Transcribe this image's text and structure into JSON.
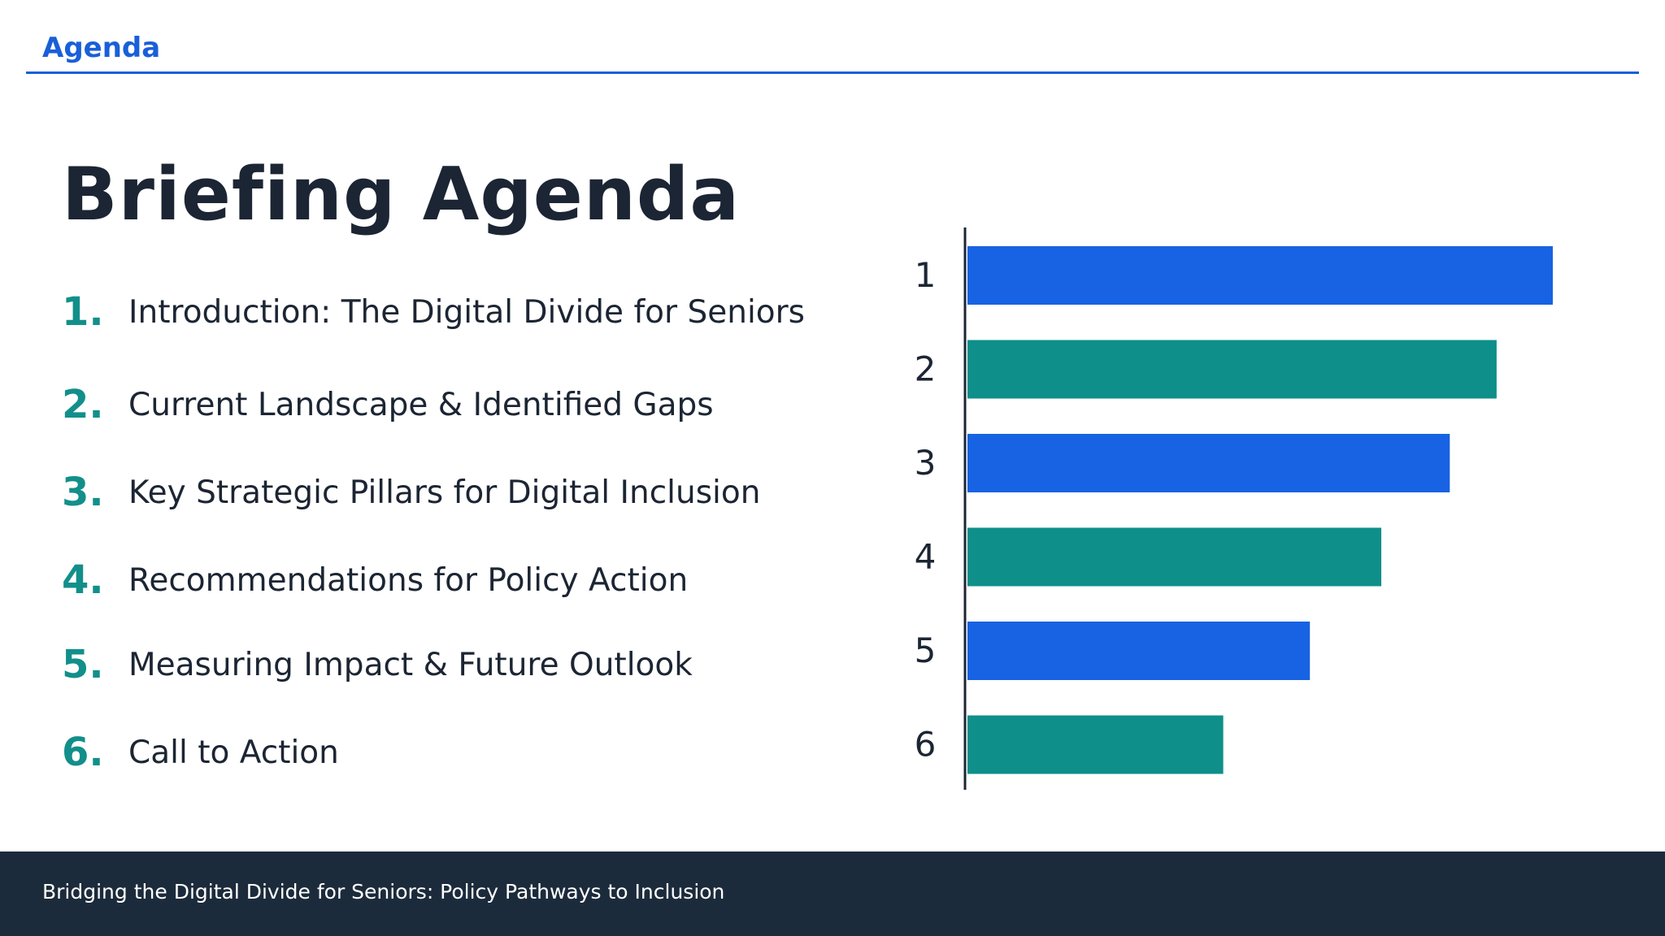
{
  "header": {
    "label": "Agenda"
  },
  "title": "Briefing Agenda",
  "agenda": {
    "items": [
      {
        "number": "1.",
        "text": "Introduction: The Digital Divide for Seniors"
      },
      {
        "number": "2.",
        "text": "Current Landscape & Identified Gaps"
      },
      {
        "number": "3.",
        "text": "Key Strategic Pillars for Digital Inclusion"
      },
      {
        "number": "4.",
        "text": "Recommendations for Policy Action"
      },
      {
        "number": "5.",
        "text": "Measuring Impact & Future Outlook"
      },
      {
        "number": "6.",
        "text": "Call to Action"
      }
    ]
  },
  "chart_data": {
    "type": "bar",
    "orientation": "horizontal",
    "categories": [
      "1",
      "2",
      "3",
      "4",
      "5",
      "6"
    ],
    "values": [
      100,
      90.4,
      82.4,
      70.7,
      58.5,
      43.7
    ],
    "colors": [
      "#1763e3",
      "#0e8f8a",
      "#1763e3",
      "#0e8f8a",
      "#1763e3",
      "#0e8f8a"
    ],
    "xlim": [
      0,
      100
    ],
    "grid": false,
    "legend": "none"
  },
  "footer": {
    "text": "Bridging the Digital Divide for Seniors: Policy Pathways to Inclusion"
  },
  "colors": {
    "accent_blue": "#1a5fd9",
    "accent_teal": "#128f8a",
    "title_text": "#1c2533",
    "footer_bg": "#1c2b3b"
  }
}
